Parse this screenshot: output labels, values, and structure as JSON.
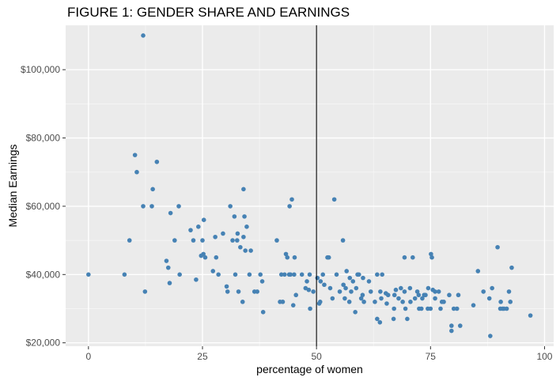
{
  "chart_data": {
    "type": "scatter",
    "title": "FIGURE 1: GENDER SHARE AND EARNINGS",
    "xlabel": "percentage of women",
    "ylabel": "Median Earnings",
    "xlim": [
      -5,
      102
    ],
    "ylim": [
      19000,
      113000
    ],
    "x_ticks": [
      0,
      25,
      50,
      75,
      100
    ],
    "x_tick_labels": [
      "0",
      "25",
      "50",
      "75",
      "100"
    ],
    "y_ticks": [
      20000,
      40000,
      60000,
      80000,
      100000
    ],
    "y_tick_labels": [
      "$20,000",
      "$40,000",
      "$60,000",
      "$80,000",
      "$100,000"
    ],
    "reference_line_x": 50,
    "grid": true,
    "point_color": "#4682b4",
    "panel_color": "#ebebeb",
    "points": [
      [
        0,
        40000
      ],
      [
        7.9,
        40000
      ],
      [
        9,
        50000
      ],
      [
        10.2,
        75000
      ],
      [
        10.6,
        70000
      ],
      [
        12,
        110000
      ],
      [
        12,
        60000
      ],
      [
        12.4,
        35000
      ],
      [
        14.1,
        65000
      ],
      [
        13.9,
        60000
      ],
      [
        15,
        73000
      ],
      [
        17.1,
        44000
      ],
      [
        17.5,
        42000
      ],
      [
        17.8,
        37500
      ],
      [
        18,
        58000
      ],
      [
        18.9,
        50000
      ],
      [
        19.8,
        60000
      ],
      [
        20,
        40000
      ],
      [
        22.4,
        53000
      ],
      [
        23,
        50000
      ],
      [
        23.6,
        38500
      ],
      [
        24.1,
        54000
      ],
      [
        24.7,
        45500
      ],
      [
        25,
        50000
      ],
      [
        25.3,
        56000
      ],
      [
        25.2,
        46000
      ],
      [
        25.6,
        45000
      ],
      [
        27.3,
        41000
      ],
      [
        27.8,
        51000
      ],
      [
        28,
        45000
      ],
      [
        28.5,
        40000
      ],
      [
        29.5,
        52000
      ],
      [
        30.3,
        36500
      ],
      [
        30.5,
        35000
      ],
      [
        31.1,
        60000
      ],
      [
        31.6,
        50000
      ],
      [
        32,
        57000
      ],
      [
        32.2,
        40000
      ],
      [
        32.6,
        50000
      ],
      [
        32.7,
        52000
      ],
      [
        32.9,
        35000
      ],
      [
        33.3,
        48000
      ],
      [
        33.8,
        32000
      ],
      [
        34,
        65000
      ],
      [
        34,
        51000
      ],
      [
        34.2,
        57000
      ],
      [
        34.4,
        47000
      ],
      [
        34.7,
        54000
      ],
      [
        35.3,
        40000
      ],
      [
        35.6,
        47000
      ],
      [
        36.4,
        35000
      ],
      [
        37,
        35000
      ],
      [
        37.7,
        40000
      ],
      [
        38.3,
        29000
      ],
      [
        38.1,
        38000
      ],
      [
        41.3,
        50000
      ],
      [
        42,
        32000
      ],
      [
        42.3,
        40000
      ],
      [
        42.6,
        32000
      ],
      [
        43,
        40000
      ],
      [
        43.3,
        46000
      ],
      [
        43.6,
        45000
      ],
      [
        44,
        40000
      ],
      [
        44.3,
        40000
      ],
      [
        44.1,
        60000
      ],
      [
        44.6,
        62000
      ],
      [
        44.9,
        31000
      ],
      [
        45.2,
        45000
      ],
      [
        45.5,
        34000
      ],
      [
        45.1,
        40000
      ],
      [
        46.8,
        40000
      ],
      [
        47.6,
        36000
      ],
      [
        47.9,
        38000
      ],
      [
        48.5,
        40000
      ],
      [
        48.3,
        35500
      ],
      [
        48.6,
        30000
      ],
      [
        49.3,
        35000
      ],
      [
        50.2,
        39000
      ],
      [
        50.6,
        31500
      ],
      [
        50.8,
        32000
      ],
      [
        50.9,
        38000
      ],
      [
        51.4,
        40000
      ],
      [
        51.7,
        37000
      ],
      [
        52.4,
        45000
      ],
      [
        52.7,
        45000
      ],
      [
        53,
        36000
      ],
      [
        53.5,
        33000
      ],
      [
        53.9,
        62000
      ],
      [
        54.4,
        40000
      ],
      [
        55.1,
        35000
      ],
      [
        55.9,
        37000
      ],
      [
        55.8,
        50000
      ],
      [
        56.2,
        33000
      ],
      [
        56.6,
        41000
      ],
      [
        56.4,
        36000
      ],
      [
        57.2,
        32000
      ],
      [
        57.3,
        39000
      ],
      [
        57.6,
        35000
      ],
      [
        58,
        38000
      ],
      [
        58.5,
        29000
      ],
      [
        58.7,
        36000
      ],
      [
        59,
        40000
      ],
      [
        59.3,
        40000
      ],
      [
        59.8,
        33000
      ],
      [
        60.1,
        34000
      ],
      [
        60.4,
        32000
      ],
      [
        60.2,
        39000
      ],
      [
        61.5,
        38000
      ],
      [
        61.9,
        35000
      ],
      [
        62.8,
        32000
      ],
      [
        63.3,
        27000
      ],
      [
        63.3,
        40000
      ],
      [
        63.9,
        26000
      ],
      [
        64.2,
        33000
      ],
      [
        64.4,
        40000
      ],
      [
        64,
        35000
      ],
      [
        65.2,
        34500
      ],
      [
        65.4,
        31500
      ],
      [
        65.7,
        34000
      ],
      [
        66.9,
        27000
      ],
      [
        67,
        30000
      ],
      [
        67.1,
        34000
      ],
      [
        67.4,
        35500
      ],
      [
        68,
        33000
      ],
      [
        68.5,
        36000
      ],
      [
        68.9,
        32000
      ],
      [
        69.3,
        45000
      ],
      [
        69.3,
        35000
      ],
      [
        69.5,
        30000
      ],
      [
        69.9,
        27000
      ],
      [
        70.6,
        32000
      ],
      [
        70.5,
        36000
      ],
      [
        71.1,
        45000
      ],
      [
        71.6,
        33000
      ],
      [
        72.1,
        35000
      ],
      [
        72.4,
        34000
      ],
      [
        72.5,
        30000
      ],
      [
        73,
        30000
      ],
      [
        73.2,
        33000
      ],
      [
        73.6,
        34000
      ],
      [
        73.9,
        34000
      ],
      [
        74.5,
        36000
      ],
      [
        74.4,
        30000
      ],
      [
        75,
        30000
      ],
      [
        75.1,
        46000
      ],
      [
        75.3,
        45000
      ],
      [
        75.5,
        35500
      ],
      [
        76,
        35000
      ],
      [
        76,
        33000
      ],
      [
        76.8,
        35000
      ],
      [
        77.2,
        30000
      ],
      [
        77.5,
        32000
      ],
      [
        77.9,
        32000
      ],
      [
        79.1,
        34000
      ],
      [
        79.6,
        23500
      ],
      [
        79.6,
        25000
      ],
      [
        80.1,
        30000
      ],
      [
        80.8,
        30000
      ],
      [
        81.1,
        34000
      ],
      [
        81.5,
        25000
      ],
      [
        84.4,
        31000
      ],
      [
        85.4,
        41000
      ],
      [
        86.6,
        35000
      ],
      [
        87.9,
        33000
      ],
      [
        88.1,
        22000
      ],
      [
        88.5,
        36000
      ],
      [
        89.7,
        48000
      ],
      [
        90.4,
        32000
      ],
      [
        90.8,
        30000
      ],
      [
        90.3,
        30000
      ],
      [
        91.1,
        30000
      ],
      [
        91.7,
        30000
      ],
      [
        92.2,
        35000
      ],
      [
        92.5,
        32000
      ],
      [
        92.8,
        42000
      ],
      [
        96.9,
        28000
      ]
    ]
  }
}
